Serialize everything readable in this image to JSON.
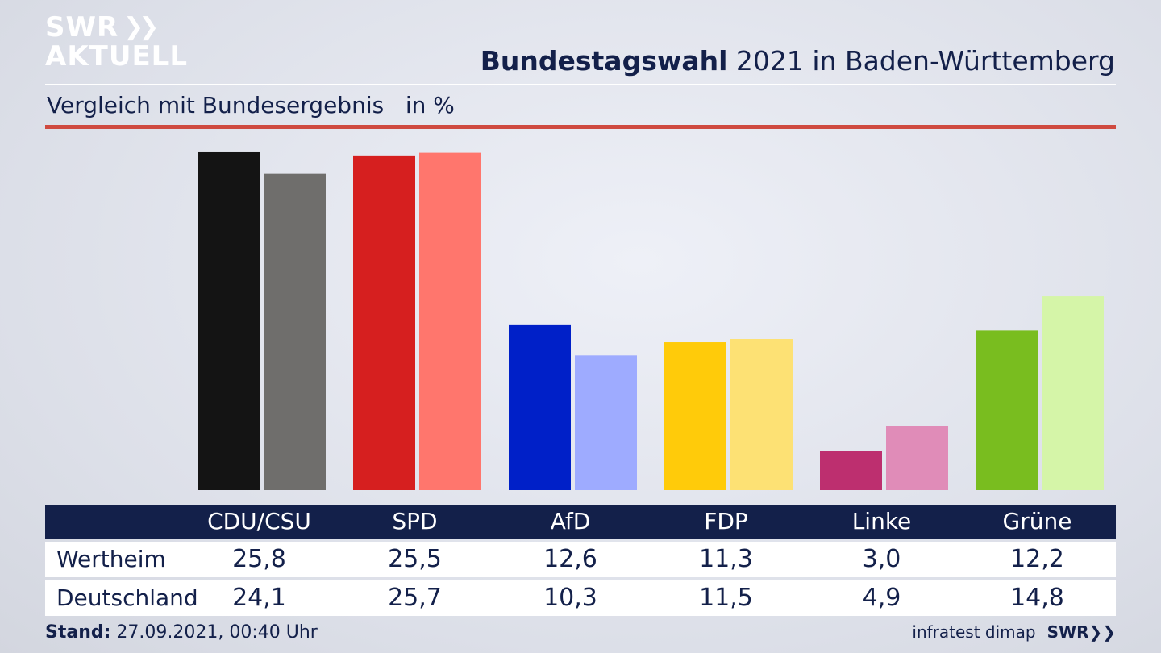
{
  "logo": {
    "line1": "SWR",
    "line2": "AKTUELL"
  },
  "header": {
    "title_bold": "Bundestagswahl",
    "title_rest": " 2021 in Baden-Württemberg",
    "subtitle": "Vergleich mit Bundesergebnis   in %"
  },
  "colors": {
    "text": "#13204a",
    "accent_rule": "#cf4a40"
  },
  "chart_data": {
    "type": "bar",
    "categories": [
      "CDU/CSU",
      "SPD",
      "AfD",
      "FDP",
      "Linke",
      "Grüne"
    ],
    "series": [
      {
        "name": "Wertheim",
        "values": [
          25.8,
          25.5,
          12.6,
          11.3,
          3.0,
          12.2
        ],
        "colors": [
          "#141414",
          "#d61f1f",
          "#0020c8",
          "#ffcb0a",
          "#bd2f6f",
          "#79bd1f"
        ]
      },
      {
        "name": "Deutschland",
        "values": [
          24.1,
          25.7,
          10.3,
          11.5,
          4.9,
          14.8
        ],
        "colors": [
          "#6f6e6c",
          "#ff766d",
          "#9eabff",
          "#fde174",
          "#e08cb8",
          "#d5f5a8"
        ]
      }
    ],
    "table": {
      "columns": [
        "CDU/CSU",
        "SPD",
        "AfD",
        "FDP",
        "Linke",
        "Grüne"
      ],
      "rows": [
        {
          "label": "Wertheim",
          "values": [
            "25,8",
            "25,5",
            "12,6",
            "11,3",
            "3,0",
            "12,2"
          ]
        },
        {
          "label": "Deutschland",
          "values": [
            "24,1",
            "25,7",
            "10,3",
            "11,5",
            "4,9",
            "14,8"
          ]
        }
      ]
    }
  },
  "footer": {
    "stand_label": "Stand:",
    "stand_value": " 27.09.2021, 00:40 Uhr",
    "source": "infratest dimap",
    "brand": "SWR"
  }
}
